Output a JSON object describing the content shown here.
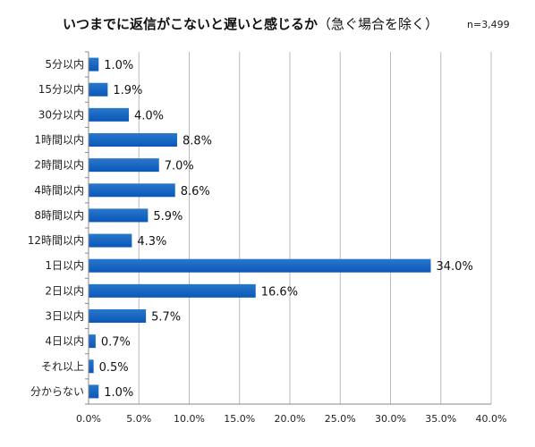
{
  "title": "いつまでに返信がこないと遅いと感じるか",
  "subtitle": "（急ぐ場合を除く）",
  "note": "n=3,499",
  "chart_data": {
    "type": "bar",
    "orientation": "horizontal",
    "categories": [
      "5分以内",
      "15分以内",
      "30分以内",
      "1時間以内",
      "2時間以内",
      "4時間以内",
      "8時間以内",
      "12時間以内",
      "1日以内",
      "2日以内",
      "3日以内",
      "4日以内",
      "それ以上",
      "分からない"
    ],
    "values": [
      1.0,
      1.9,
      4.0,
      8.8,
      7.0,
      8.6,
      5.9,
      4.3,
      34.0,
      16.6,
      5.7,
      0.7,
      0.5,
      1.0
    ],
    "value_labels": [
      "1.0%",
      "1.9%",
      "4.0%",
      "8.8%",
      "7.0%",
      "8.6%",
      "5.9%",
      "4.3%",
      "34.0%",
      "16.6%",
      "5.7%",
      "0.7%",
      "0.5%",
      "1.0%"
    ],
    "xlim": [
      0,
      40
    ],
    "xticks": [
      "0.0%",
      "5.0%",
      "10.0%",
      "15.0%",
      "20.0%",
      "25.0%",
      "30.0%",
      "35.0%",
      "40.0%"
    ],
    "grid": true,
    "bar_color": "#2878cc",
    "bar_color_dark": "#0b57b8"
  }
}
